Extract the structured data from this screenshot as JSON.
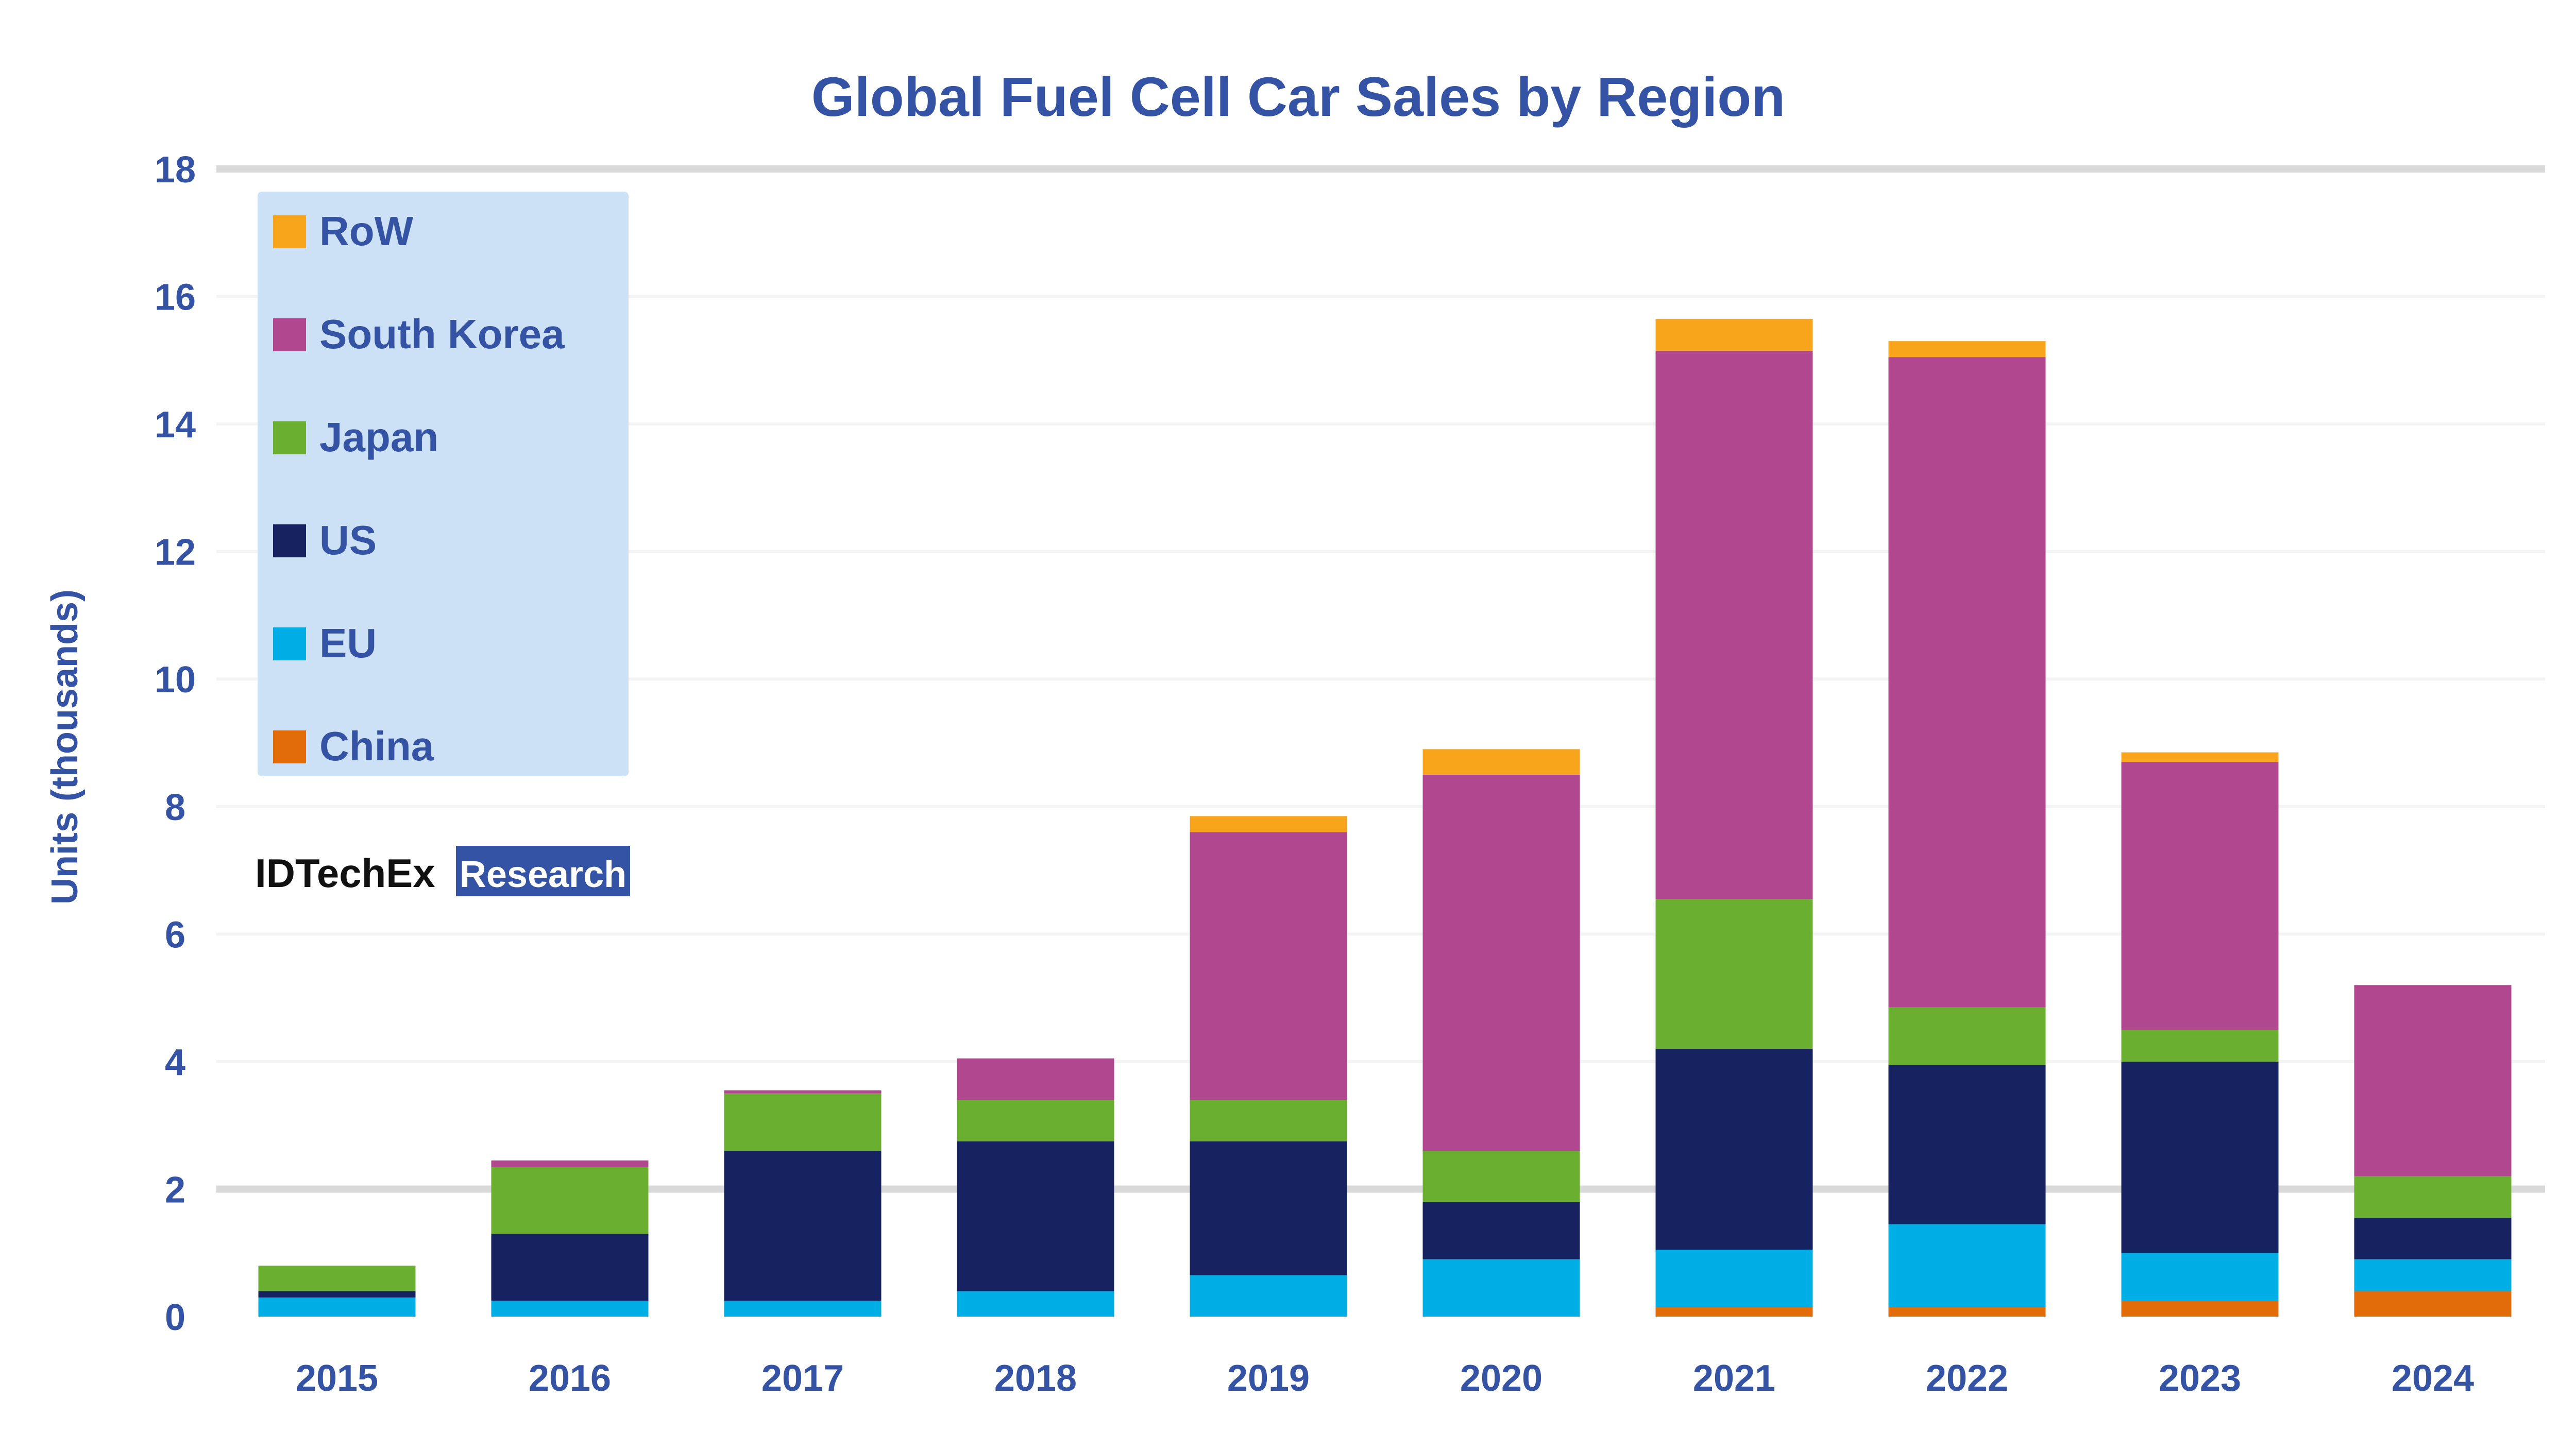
{
  "chart_data": {
    "type": "bar",
    "stacked": true,
    "title": "Global Fuel Cell Car Sales by Region",
    "xlabel": "",
    "ylabel": "Units (thousands)",
    "ylim": [
      0,
      18
    ],
    "yticks": [
      "0",
      "2",
      "4",
      "6",
      "8",
      "10",
      "12",
      "14",
      "16",
      "18"
    ],
    "categories": [
      "2015",
      "2016",
      "2017",
      "2018",
      "2019",
      "2020",
      "2021",
      "2022",
      "2023",
      "2024"
    ],
    "gridlines": true,
    "legend_position": "top-left",
    "series": [
      {
        "name": "China",
        "color": "#e36c0a",
        "values": [
          0,
          0,
          0,
          0,
          0,
          0,
          0.15,
          0.15,
          0.25,
          0.4
        ]
      },
      {
        "name": "EU",
        "color": "#00aee6",
        "values": [
          0.3,
          0.25,
          0.25,
          0.4,
          0.65,
          0.9,
          0.9,
          1.3,
          0.75,
          0.5
        ]
      },
      {
        "name": "US",
        "color": "#172360",
        "values": [
          0.1,
          1.05,
          2.35,
          2.35,
          2.1,
          0.9,
          3.15,
          2.5,
          3.0,
          0.65
        ]
      },
      {
        "name": "Japan",
        "color": "#6aaf2f",
        "values": [
          0.4,
          1.05,
          0.9,
          0.65,
          0.65,
          0.8,
          2.35,
          0.9,
          0.5,
          0.65
        ]
      },
      {
        "name": "South Korea",
        "color": "#b0478f",
        "values": [
          0,
          0.1,
          0.05,
          0.65,
          4.2,
          5.9,
          8.6,
          10.2,
          4.2,
          3.0
        ]
      },
      {
        "name": "RoW",
        "color": "#f9a51c",
        "values": [
          0,
          0,
          0,
          0,
          0.25,
          0.4,
          0.5,
          0.25,
          0.15,
          0
        ]
      }
    ]
  },
  "brand": {
    "part1": "IDTechEx",
    "part2": "Research"
  },
  "legend": {
    "background": "#cce1f5"
  }
}
